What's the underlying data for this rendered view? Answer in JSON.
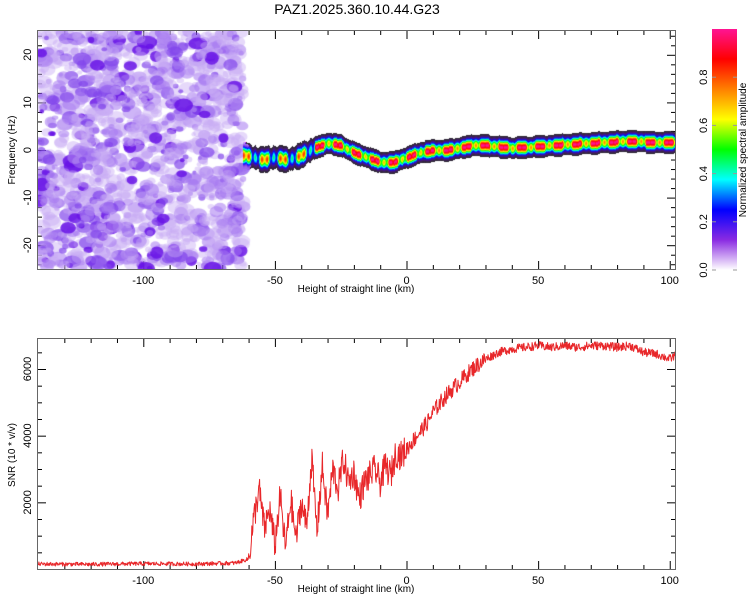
{
  "title": "PAZ1.2025.360.10.44.G23",
  "chart_data": [
    {
      "type": "heatmap",
      "name": "spectrogram",
      "title": "PAZ1.2025.360.10.44.G23",
      "xlabel": "Height of straight line (km)",
      "ylabel": "Frequency (Hz)",
      "xlim": [
        -140,
        102
      ],
      "ylim": [
        -25,
        25
      ],
      "xticks": [
        -100,
        -50,
        0,
        50,
        100
      ],
      "xtick_labels": [
        "-100",
        "-50",
        "0",
        "50",
        "100"
      ],
      "yticks": [
        -20,
        -10,
        0,
        10,
        20
      ],
      "ytick_labels": [
        "-20",
        "-10",
        "0",
        "10",
        "20"
      ],
      "noise_region_x": [
        -140,
        -62
      ],
      "ridge": {
        "x": [
          -62,
          -58,
          -55,
          -50,
          -45,
          -40,
          -35,
          -30,
          -25,
          -20,
          -15,
          -10,
          -5,
          0,
          5,
          10,
          15,
          20,
          25,
          30,
          40,
          50,
          60,
          70,
          80,
          90,
          100,
          102
        ],
        "freq": [
          -1.0,
          -1.5,
          -2.0,
          -1.5,
          -2.0,
          -1.0,
          0.5,
          1.5,
          1.0,
          -0.5,
          -1.5,
          -2.5,
          -2.5,
          -1.5,
          -0.5,
          0.0,
          0.0,
          0.5,
          1.0,
          1.0,
          0.5,
          0.8,
          1.2,
          1.5,
          1.8,
          1.8,
          1.6,
          1.6
        ]
      },
      "colorbar": {
        "label": "Normalized spectral amplitude",
        "range": [
          0.0,
          1.0
        ],
        "ticks": [
          0.0,
          0.2,
          0.4,
          0.6,
          0.8
        ],
        "tick_labels": [
          "0.0",
          "0.2",
          "0.4",
          "0.6",
          "0.8"
        ],
        "colors": [
          "#ffffff",
          "#8a2be2",
          "#0000ff",
          "#00ffff",
          "#00ff00",
          "#ffff00",
          "#ff8000",
          "#ff0000",
          "#ff1493"
        ]
      }
    },
    {
      "type": "line",
      "name": "snr",
      "xlabel": "Height of straight line (km)",
      "ylabel": "SNR (10 * v/v)",
      "xlim": [
        -140,
        102
      ],
      "ylim": [
        0,
        6900
      ],
      "xticks": [
        -100,
        -50,
        0,
        50,
        100
      ],
      "xtick_labels": [
        "-100",
        "-50",
        "0",
        "50",
        "100"
      ],
      "yticks": [
        2000,
        4000,
        6000
      ],
      "ytick_labels": [
        "2000",
        "4000",
        "6000"
      ],
      "line_color": "#e8272a",
      "series": [
        {
          "name": "SNR",
          "x": [
            -140,
            -120,
            -100,
            -80,
            -65,
            -60,
            -58,
            -56,
            -54,
            -52,
            -50,
            -48,
            -46,
            -44,
            -42,
            -40,
            -38,
            -36,
            -34,
            -32,
            -30,
            -28,
            -26,
            -24,
            -22,
            -20,
            -18,
            -16,
            -14,
            -12,
            -10,
            -8,
            -6,
            -4,
            -2,
            0,
            2,
            4,
            6,
            8,
            10,
            15,
            20,
            25,
            30,
            35,
            40,
            45,
            50,
            55,
            60,
            65,
            70,
            75,
            80,
            85,
            90,
            95,
            100,
            102
          ],
          "y": [
            150,
            140,
            160,
            150,
            180,
            300,
            1500,
            2400,
            1200,
            1800,
            700,
            2200,
            600,
            2100,
            900,
            2000,
            1300,
            3300,
            1100,
            3100,
            1600,
            3000,
            2400,
            3300,
            2600,
            2900,
            2100,
            2600,
            2800,
            3000,
            2600,
            3100,
            2800,
            3500,
            3400,
            3600,
            3800,
            4000,
            4200,
            4400,
            4700,
            5200,
            5600,
            6000,
            6300,
            6500,
            6600,
            6650,
            6700,
            6650,
            6700,
            6650,
            6700,
            6700,
            6650,
            6700,
            6500,
            6450,
            6300,
            6400
          ]
        }
      ]
    }
  ]
}
